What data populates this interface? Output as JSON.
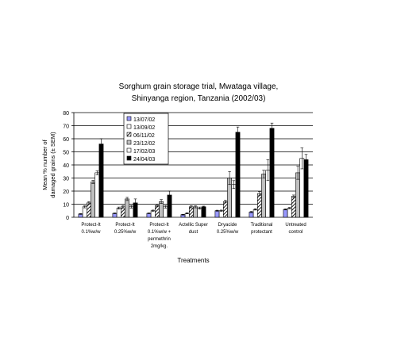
{
  "chart_data": {
    "type": "bar",
    "title": [
      "Sorghum grain storage trial, Mwataga village,",
      "Shinyanga region, Tanzania (2002/03)"
    ],
    "xlabel": "Treatments",
    "ylabel": [
      "Mean % number of",
      "damaged grains (± SEM)"
    ],
    "ylim": [
      0,
      80
    ],
    "yticks": [
      0,
      10,
      20,
      30,
      40,
      50,
      60,
      70,
      80
    ],
    "grid": true,
    "legend_position": "top-left",
    "categories": [
      [
        "Protect-It",
        "0.1%w/w"
      ],
      [
        "Protect-It",
        "0.25%w/w"
      ],
      [
        "Protect-It",
        "0.1%w/w +",
        "permethrin",
        "2mg/kg."
      ],
      [
        "Actellic Super",
        "dust"
      ],
      [
        "Dryacide",
        "0.25%w/w"
      ],
      [
        "Traditional",
        "protectant"
      ],
      [
        "Untreated",
        "control"
      ]
    ],
    "series": [
      {
        "name": "13/07/02",
        "fill": "#9999ff",
        "pattern": "solid",
        "values": [
          2.5,
          3,
          3,
          2,
          5,
          4,
          6
        ],
        "errors": [
          0.3,
          0.3,
          0.3,
          0.3,
          0.4,
          0.5,
          0.4
        ]
      },
      {
        "name": "13/09/02",
        "fill": "#ffffff",
        "pattern": "white",
        "values": [
          8,
          7,
          5,
          3,
          5,
          6,
          7
        ],
        "errors": [
          0.8,
          0.8,
          0.5,
          0.4,
          0.5,
          0.5,
          0.5
        ]
      },
      {
        "name": "06/11/02",
        "fill": "#ffffff",
        "pattern": "diagonal",
        "values": [
          11,
          8,
          9,
          8,
          12,
          18,
          16
        ],
        "errors": [
          1,
          1,
          1,
          0.8,
          1,
          1.5,
          1
        ]
      },
      {
        "name": "23/12/02",
        "fill": "#c0c0c0",
        "pattern": "solid",
        "values": [
          27,
          14,
          12,
          8,
          30,
          33,
          34
        ],
        "errors": [
          1.2,
          1.2,
          1.5,
          0.8,
          5,
          3,
          5
        ]
      },
      {
        "name": "17/02/03",
        "fill": "#ffffff",
        "pattern": "white",
        "values": [
          34,
          8,
          8,
          7,
          25,
          36,
          45
        ],
        "errors": [
          1.5,
          1,
          1,
          0.8,
          3,
          8,
          8
        ]
      },
      {
        "name": "24/04/03",
        "fill": "#000000",
        "pattern": "solid",
        "values": [
          56,
          11,
          17,
          8,
          65,
          68,
          44
        ],
        "errors": [
          4,
          3,
          3,
          0.5,
          4,
          4,
          4
        ]
      }
    ]
  }
}
